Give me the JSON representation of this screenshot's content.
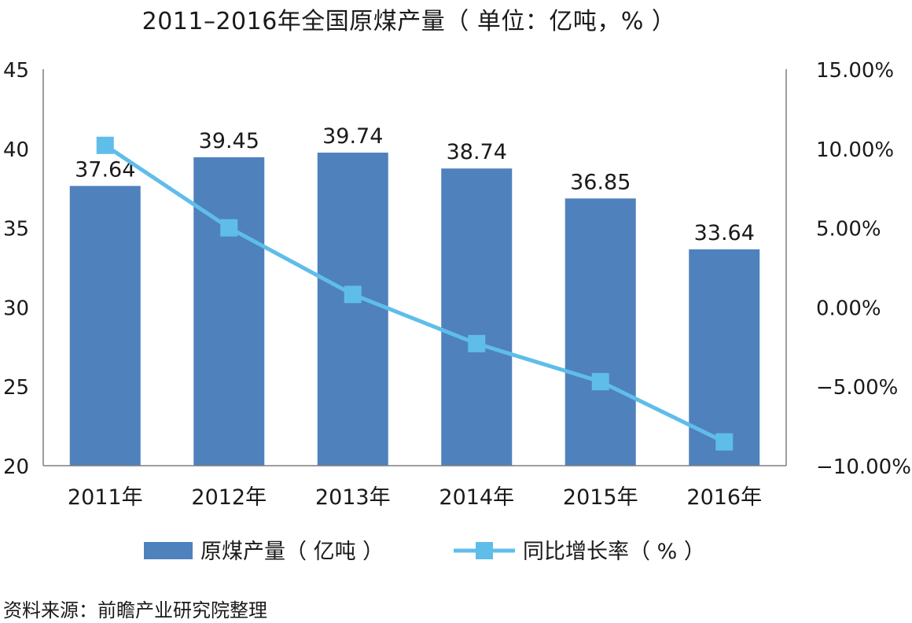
{
  "chart_data": {
    "type": "bar",
    "title": "2011–2016年全国原煤产量（ 单位：亿吨，% ）",
    "categories": [
      "2011年",
      "2012年",
      "2013年",
      "2014年",
      "2015年",
      "2016年"
    ],
    "series": [
      {
        "name": "原煤产量（ 亿吨 ）",
        "type": "bar",
        "axis": "left",
        "values": [
          37.64,
          39.45,
          39.74,
          38.74,
          36.85,
          33.64
        ],
        "labels": [
          "37.64",
          "39.45",
          "39.74",
          "38.74",
          "36.85",
          "33.64"
        ],
        "color": "#4f81bd"
      },
      {
        "name": "同比增长率（ % ）",
        "type": "line",
        "axis": "right",
        "values": [
          10.2,
          5.0,
          0.8,
          -2.3,
          -4.7,
          -8.5
        ],
        "color": "#5fbdea"
      }
    ],
    "y_left": {
      "min": 20,
      "max": 45,
      "step": 5,
      "ticks": [
        "20",
        "25",
        "30",
        "35",
        "40",
        "45"
      ]
    },
    "y_right": {
      "min": -10,
      "max": 15,
      "step": 5,
      "ticks": [
        "−10.00%",
        "−5.00%",
        "0.00%",
        "5.00%",
        "10.00%",
        "15.00%"
      ]
    },
    "grid": false,
    "legend": "bottom"
  },
  "source": "资料来源：前瞻产业研究院整理"
}
